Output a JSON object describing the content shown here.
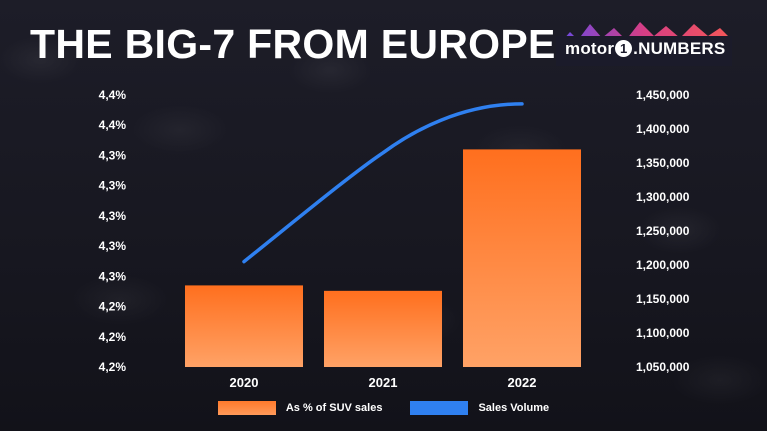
{
  "title": "THE BIG-7 FROM EUROPE",
  "logo": {
    "prefix": "motor",
    "digit": "1",
    "suffix": ".NUMBERS"
  },
  "colors": {
    "bar": "#ff7a2c",
    "line": "#2f80f0",
    "text": "#ffffff"
  },
  "chart_data": {
    "type": "bar",
    "categories": [
      "2020",
      "2021",
      "2022"
    ],
    "series": [
      {
        "name": "As % of SUV sales",
        "type": "bar",
        "axis": "left",
        "values": [
          4.275,
          4.27,
          4.4
        ]
      },
      {
        "name": "Sales Volume",
        "type": "line",
        "axis": "right",
        "values": [
          1205000,
          1365000,
          1437000
        ]
      }
    ],
    "y_left": {
      "ylim": [
        4.2,
        4.45
      ],
      "tick_labels": [
        "4,2%",
        "4,2%",
        "4,2%",
        "4,3%",
        "4,3%",
        "4,3%",
        "4,3%",
        "4,3%",
        "4,4%",
        "4,4%"
      ]
    },
    "y_right": {
      "ylim": [
        1050000,
        1450000
      ],
      "tick_labels": [
        "1,050,000",
        "1,100,000",
        "1,150,000",
        "1,200,000",
        "1,250,000",
        "1,300,000",
        "1,350,000",
        "1,400,000",
        "1,450,000"
      ]
    },
    "grid": false,
    "legend_position": "bottom"
  }
}
